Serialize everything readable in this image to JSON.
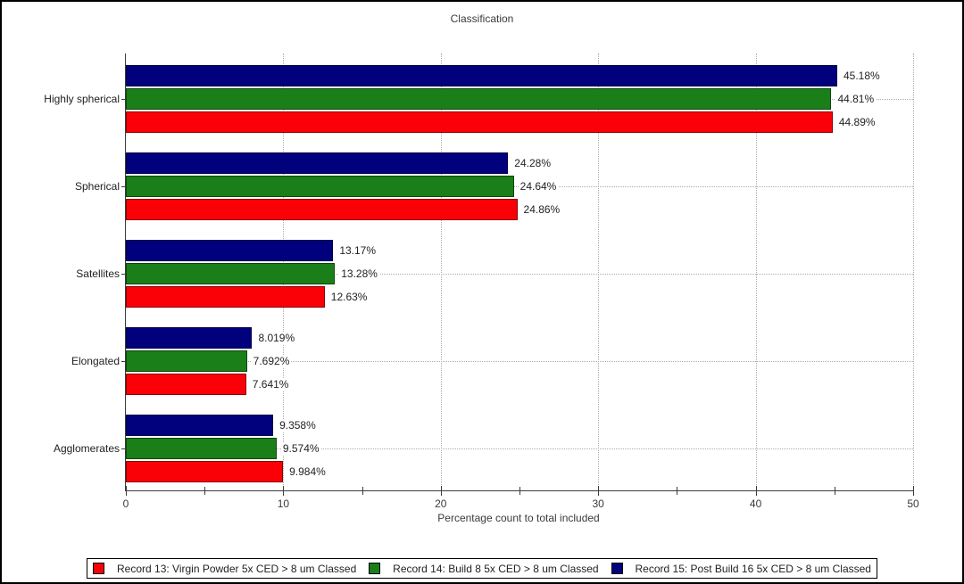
{
  "chart_data": {
    "type": "bar",
    "orientation": "horizontal",
    "title": "Classification",
    "xlabel": "Percentage count to total included",
    "xlim": [
      0,
      50
    ],
    "x_major_ticks": [
      0,
      10,
      20,
      30,
      40,
      50
    ],
    "x_minor_ticks": [
      5,
      15,
      25,
      35,
      45
    ],
    "grid": "dotted",
    "legend_position": "bottom",
    "categories": [
      "Highly spherical",
      "Spherical",
      "Satellites",
      "Elongated",
      "Agglomerates"
    ],
    "series": [
      {
        "name": "Record 13: Virgin Powder 5x CED > 8 um Classed",
        "color": "#fa0107",
        "values": [
          44.89,
          24.86,
          12.63,
          7.641,
          9.984
        ],
        "labels": [
          "44.89%",
          "24.86%",
          "12.63%",
          "7.641%",
          "9.984%"
        ]
      },
      {
        "name": "Record 14: Build 8 5x CED > 8 um Classed",
        "color": "#1a7f19",
        "values": [
          44.81,
          24.64,
          13.28,
          7.692,
          9.574
        ],
        "labels": [
          "44.81%",
          "24.64%",
          "13.28%",
          "7.692%",
          "9.574%"
        ]
      },
      {
        "name": "Record 15: Post Build 16 5x CED > 8 um Classed",
        "color": "#01017e",
        "values": [
          45.18,
          24.28,
          13.17,
          8.019,
          9.358
        ],
        "labels": [
          "45.18%",
          "24.28%",
          "13.17%",
          "8.019%",
          "9.358%"
        ]
      }
    ]
  }
}
